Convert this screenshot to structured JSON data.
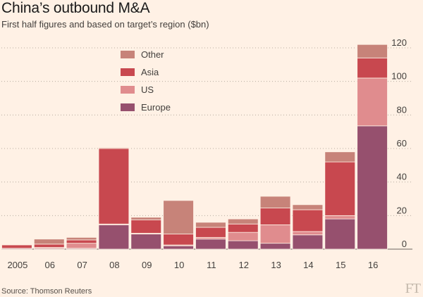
{
  "header": {
    "title": "China’s outbound M&A",
    "subtitle": "First half figures and based on target’s region ($bn)"
  },
  "footer": {
    "source": "Source: Thomson Reuters",
    "logo_text": "FT"
  },
  "chart_data": {
    "type": "bar",
    "stacked": true,
    "title": "China’s outbound M&A",
    "subtitle": "First half figures and based on target’s region ($bn)",
    "xlabel": "",
    "ylabel": "",
    "categories": [
      "2005",
      "06",
      "07",
      "08",
      "09",
      "10",
      "11",
      "12",
      "13",
      "14",
      "15",
      "16"
    ],
    "ylim": [
      0,
      120
    ],
    "yticks": [
      0,
      20,
      40,
      60,
      80,
      100,
      120
    ],
    "grid": true,
    "y_axis_side": "right",
    "legend_position": "top-left",
    "series": [
      {
        "name": "Europe",
        "color": "#96506e",
        "values": [
          0.5,
          0.5,
          0.5,
          14.5,
          9,
          2,
          6,
          5,
          3.5,
          8.5,
          18,
          73.5
        ]
      },
      {
        "name": "US",
        "color": "#e08c8e",
        "values": [
          0,
          0.5,
          3,
          0.5,
          0.5,
          0.5,
          1,
          5,
          11,
          2,
          2,
          28.5
        ]
      },
      {
        "name": "Asia",
        "color": "#c8484f",
        "values": [
          2,
          2,
          2,
          45,
          8,
          6.5,
          6,
          5,
          10,
          13,
          32,
          12
        ]
      },
      {
        "name": "Other",
        "color": "#c78379",
        "values": [
          0,
          3,
          1.5,
          0.5,
          1.5,
          20,
          3,
          3,
          7,
          3,
          6,
          8
        ]
      }
    ],
    "legend_order": [
      "Other",
      "Asia",
      "US",
      "Europe"
    ]
  }
}
